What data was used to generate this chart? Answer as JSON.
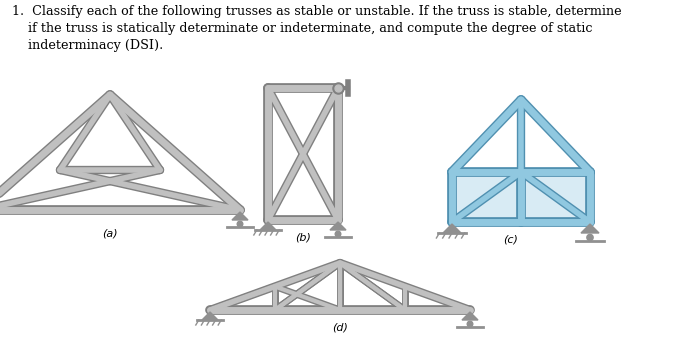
{
  "background_color": "#ffffff",
  "gc": "#c0c0c0",
  "gc_edge": "#808080",
  "bc": "#90c8e0",
  "bc_edge": "#5090b0",
  "title": "1.  Classify each of the following trusses as stable or unstable. If the truss is stable, determine\n    if the truss is statically determinate or indeterminate, and compute the degree of static\n    indeterminacy (DSI).",
  "title_fontsize": 9.2,
  "label_fontsize": 8,
  "label_a": "(a)",
  "label_b": "(b)",
  "label_c": "(c)",
  "label_d": "(d)"
}
